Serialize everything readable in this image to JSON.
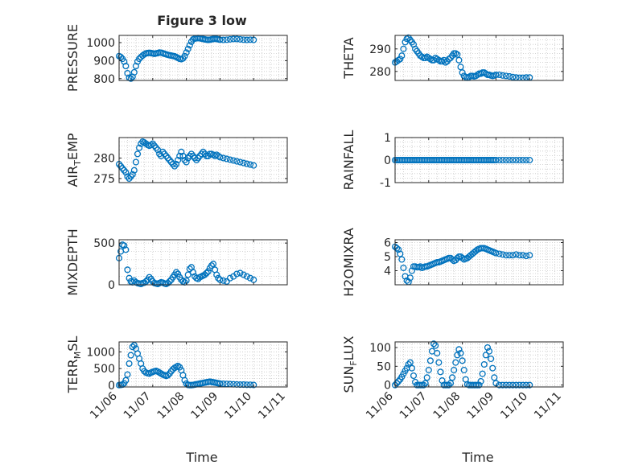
{
  "figure": {
    "title": "Figure 3 low",
    "xlabel": "Time",
    "x_tick_labels": [
      "11/06",
      "11/07",
      "11/08",
      "11/09",
      "11/10",
      "11/11"
    ],
    "marker_color": "#0072bd"
  },
  "chart_data": [
    {
      "type": "scatter",
      "ylabel": "PRESSURE",
      "ylim": [
        790,
        1040
      ],
      "yticks": [
        800,
        900,
        1000
      ],
      "x": [
        0.0,
        0.05,
        0.1,
        0.15,
        0.2,
        0.25,
        0.3,
        0.35,
        0.4,
        0.45,
        0.5,
        0.55,
        0.6,
        0.65,
        0.7,
        0.75,
        0.8,
        0.85,
        0.9,
        0.95,
        1.0,
        1.05,
        1.1,
        1.15,
        1.2,
        1.25,
        1.3,
        1.35,
        1.4,
        1.45,
        1.5,
        1.55,
        1.6,
        1.65,
        1.7,
        1.75,
        1.8,
        1.85,
        1.9,
        1.95,
        2.0,
        2.05,
        2.1,
        2.15,
        2.2,
        2.25,
        2.3,
        2.35,
        2.4,
        2.45,
        2.5,
        2.55,
        2.6,
        2.65,
        2.7,
        2.75,
        2.8,
        2.85,
        2.9,
        2.95,
        3.0,
        3.1,
        3.2,
        3.3,
        3.4,
        3.5,
        3.6,
        3.7,
        3.8,
        3.9,
        4.0
      ],
      "y": [
        925,
        920,
        910,
        895,
        870,
        830,
        805,
        800,
        810,
        835,
        870,
        895,
        910,
        920,
        928,
        935,
        940,
        942,
        943,
        942,
        940,
        938,
        940,
        942,
        945,
        944,
        941,
        938,
        935,
        932,
        930,
        928,
        926,
        924,
        920,
        915,
        910,
        908,
        912,
        925,
        945,
        965,
        985,
        1005,
        1018,
        1022,
        1024,
        1025,
        1024,
        1022,
        1020,
        1018,
        1016,
        1015,
        1016,
        1018,
        1020,
        1021,
        1020,
        1018,
        1016,
        1015,
        1016,
        1018,
        1020,
        1020,
        1018,
        1016,
        1015,
        1016,
        1015
      ]
    },
    {
      "type": "scatter",
      "ylabel": "THETA",
      "ylim": [
        276,
        296
      ],
      "yticks": [
        280,
        290
      ],
      "x": [
        0.0,
        0.05,
        0.1,
        0.15,
        0.2,
        0.25,
        0.3,
        0.35,
        0.4,
        0.45,
        0.5,
        0.55,
        0.6,
        0.65,
        0.7,
        0.75,
        0.8,
        0.85,
        0.9,
        0.95,
        1.0,
        1.05,
        1.1,
        1.15,
        1.2,
        1.25,
        1.3,
        1.35,
        1.4,
        1.45,
        1.5,
        1.55,
        1.6,
        1.65,
        1.7,
        1.75,
        1.8,
        1.85,
        1.9,
        1.95,
        2.0,
        2.05,
        2.1,
        2.15,
        2.2,
        2.25,
        2.3,
        2.35,
        2.4,
        2.45,
        2.5,
        2.55,
        2.6,
        2.65,
        2.7,
        2.75,
        2.8,
        2.85,
        2.9,
        2.95,
        3.0,
        3.1,
        3.2,
        3.3,
        3.4,
        3.5,
        3.6,
        3.7,
        3.8,
        3.9,
        4.0
      ],
      "y": [
        284,
        284.5,
        285,
        285.5,
        287,
        290,
        293,
        294.5,
        295,
        294,
        293,
        292,
        290,
        289,
        288,
        287,
        286.5,
        286,
        286,
        286.5,
        286,
        285.5,
        285,
        285,
        286,
        285.5,
        285,
        284.5,
        284.5,
        285,
        284,
        284.5,
        285.5,
        286,
        287,
        288,
        288,
        287.5,
        285,
        282,
        279.5,
        278,
        277.5,
        277.2,
        277.5,
        278,
        278,
        277.8,
        278,
        278.5,
        279,
        279,
        279.5,
        279.5,
        279,
        278.5,
        278.5,
        278.2,
        278,
        278.2,
        278.5,
        278.5,
        278.2,
        278,
        277.8,
        277.5,
        277.3,
        277.2,
        277.2,
        277.3,
        277.3
      ]
    },
    {
      "type": "scatter",
      "ylabel": "AIR_TEMP",
      "ylim": [
        274,
        285
      ],
      "yticks": [
        275,
        280
      ],
      "x": [
        0.0,
        0.05,
        0.1,
        0.15,
        0.2,
        0.25,
        0.3,
        0.35,
        0.4,
        0.45,
        0.5,
        0.55,
        0.6,
        0.65,
        0.7,
        0.75,
        0.8,
        0.85,
        0.9,
        0.95,
        1.0,
        1.05,
        1.1,
        1.15,
        1.2,
        1.25,
        1.3,
        1.35,
        1.4,
        1.45,
        1.5,
        1.55,
        1.6,
        1.65,
        1.7,
        1.75,
        1.8,
        1.85,
        1.9,
        1.95,
        2.0,
        2.05,
        2.1,
        2.15,
        2.2,
        2.25,
        2.3,
        2.35,
        2.4,
        2.45,
        2.5,
        2.55,
        2.6,
        2.65,
        2.7,
        2.75,
        2.8,
        2.85,
        2.9,
        2.95,
        3.0,
        3.1,
        3.2,
        3.3,
        3.4,
        3.5,
        3.6,
        3.7,
        3.8,
        3.9,
        4.0
      ],
      "y": [
        278.5,
        278,
        277.5,
        277,
        276.5,
        275.5,
        275,
        275.5,
        276,
        277,
        279,
        281,
        282.5,
        283.5,
        284,
        283.8,
        283.5,
        283.2,
        283,
        283.2,
        283.5,
        283,
        282.5,
        282,
        281,
        280.5,
        281.5,
        281,
        280.5,
        280,
        279.5,
        279,
        278.5,
        278,
        278.5,
        279.5,
        280.5,
        281.5,
        280.5,
        279.5,
        279,
        280,
        280.5,
        281,
        280.5,
        280,
        279.5,
        280,
        280.5,
        281,
        281.5,
        281,
        280.5,
        280.5,
        281,
        281,
        280.8,
        280.5,
        280.8,
        280.5,
        280.2,
        280,
        279.8,
        279.6,
        279.4,
        279.2,
        279,
        278.8,
        278.6,
        278.4,
        278.2
      ]
    },
    {
      "type": "scatter",
      "ylabel": "RAINFALL",
      "ylim": [
        -1,
        1
      ],
      "yticks": [
        -1,
        0,
        1
      ],
      "x": [
        0.0,
        0.05,
        0.1,
        0.15,
        0.2,
        0.25,
        0.3,
        0.35,
        0.4,
        0.45,
        0.5,
        0.55,
        0.6,
        0.65,
        0.7,
        0.75,
        0.8,
        0.85,
        0.9,
        0.95,
        1.0,
        1.05,
        1.1,
        1.15,
        1.2,
        1.25,
        1.3,
        1.35,
        1.4,
        1.45,
        1.5,
        1.55,
        1.6,
        1.65,
        1.7,
        1.75,
        1.8,
        1.85,
        1.9,
        1.95,
        2.0,
        2.05,
        2.1,
        2.15,
        2.2,
        2.25,
        2.3,
        2.35,
        2.4,
        2.45,
        2.5,
        2.55,
        2.6,
        2.65,
        2.7,
        2.75,
        2.8,
        2.85,
        2.9,
        2.95,
        3.0,
        3.1,
        3.2,
        3.3,
        3.4,
        3.5,
        3.6,
        3.7,
        3.8,
        3.9,
        4.0
      ],
      "y": [
        0,
        0,
        0,
        0,
        0,
        0,
        0,
        0,
        0,
        0,
        0,
        0,
        0,
        0,
        0,
        0,
        0,
        0,
        0,
        0,
        0,
        0,
        0,
        0,
        0,
        0,
        0,
        0,
        0,
        0,
        0,
        0,
        0,
        0,
        0,
        0,
        0,
        0,
        0,
        0,
        0,
        0,
        0,
        0,
        0,
        0,
        0,
        0,
        0,
        0,
        0,
        0,
        0,
        0,
        0,
        0,
        0,
        0,
        0,
        0,
        0,
        0,
        0,
        0,
        0,
        0,
        0,
        0,
        0,
        0,
        0
      ]
    },
    {
      "type": "scatter",
      "ylabel": "MIXDEPTH",
      "ylim": [
        0,
        540
      ],
      "yticks": [
        0,
        500
      ],
      "x": [
        0.0,
        0.05,
        0.1,
        0.15,
        0.2,
        0.25,
        0.3,
        0.35,
        0.4,
        0.45,
        0.5,
        0.55,
        0.6,
        0.65,
        0.7,
        0.75,
        0.8,
        0.85,
        0.9,
        0.95,
        1.0,
        1.05,
        1.1,
        1.15,
        1.2,
        1.25,
        1.3,
        1.35,
        1.4,
        1.45,
        1.5,
        1.55,
        1.6,
        1.65,
        1.7,
        1.75,
        1.8,
        1.85,
        1.9,
        1.95,
        2.0,
        2.05,
        2.1,
        2.15,
        2.2,
        2.25,
        2.3,
        2.35,
        2.4,
        2.45,
        2.5,
        2.55,
        2.6,
        2.65,
        2.7,
        2.75,
        2.8,
        2.85,
        2.9,
        2.95,
        3.0,
        3.1,
        3.2,
        3.3,
        3.4,
        3.5,
        3.6,
        3.7,
        3.8,
        3.9,
        4.0
      ],
      "y": [
        320,
        400,
        480,
        470,
        420,
        180,
        80,
        40,
        30,
        50,
        30,
        20,
        15,
        10,
        20,
        25,
        40,
        60,
        90,
        70,
        40,
        20,
        15,
        10,
        20,
        30,
        25,
        15,
        10,
        20,
        40,
        60,
        90,
        120,
        150,
        130,
        90,
        60,
        40,
        30,
        50,
        120,
        190,
        210,
        150,
        100,
        80,
        70,
        90,
        100,
        110,
        120,
        140,
        160,
        200,
        230,
        250,
        180,
        120,
        80,
        60,
        50,
        40,
        80,
        100,
        130,
        140,
        120,
        100,
        80,
        60
      ]
    },
    {
      "type": "scatter",
      "ylabel": "H2OMIXRA",
      "ylim": [
        3,
        6.2
      ],
      "yticks": [
        4,
        5,
        6
      ],
      "x": [
        0.0,
        0.05,
        0.1,
        0.15,
        0.2,
        0.25,
        0.3,
        0.35,
        0.4,
        0.45,
        0.5,
        0.55,
        0.6,
        0.65,
        0.7,
        0.75,
        0.8,
        0.85,
        0.9,
        0.95,
        1.0,
        1.05,
        1.1,
        1.15,
        1.2,
        1.25,
        1.3,
        1.35,
        1.4,
        1.45,
        1.5,
        1.55,
        1.6,
        1.65,
        1.7,
        1.75,
        1.8,
        1.85,
        1.9,
        1.95,
        2.0,
        2.05,
        2.1,
        2.15,
        2.2,
        2.25,
        2.3,
        2.35,
        2.4,
        2.45,
        2.5,
        2.55,
        2.6,
        2.65,
        2.7,
        2.75,
        2.8,
        2.85,
        2.9,
        2.95,
        3.0,
        3.1,
        3.2,
        3.3,
        3.4,
        3.5,
        3.6,
        3.7,
        3.8,
        3.9,
        4.0
      ],
      "y": [
        5.7,
        5.6,
        5.5,
        5.2,
        4.8,
        4.2,
        3.6,
        3.3,
        3.2,
        3.5,
        4.0,
        4.3,
        4.3,
        4.25,
        4.25,
        4.3,
        4.2,
        4.25,
        4.3,
        4.3,
        4.35,
        4.4,
        4.45,
        4.5,
        4.55,
        4.6,
        4.6,
        4.65,
        4.7,
        4.75,
        4.8,
        4.85,
        4.9,
        4.9,
        4.8,
        4.7,
        4.75,
        4.9,
        5.0,
        5.0,
        4.9,
        4.8,
        4.85,
        4.9,
        5.0,
        5.1,
        5.2,
        5.3,
        5.4,
        5.5,
        5.55,
        5.6,
        5.6,
        5.6,
        5.55,
        5.5,
        5.45,
        5.4,
        5.35,
        5.3,
        5.25,
        5.2,
        5.15,
        5.1,
        5.1,
        5.1,
        5.15,
        5.1,
        5.1,
        5.05,
        5.1
      ]
    },
    {
      "type": "scatter",
      "ylabel": "TERR_MSL",
      "ylim": [
        -50,
        1300
      ],
      "yticks": [
        0,
        500,
        1000
      ],
      "x": [
        0.0,
        0.05,
        0.1,
        0.15,
        0.2,
        0.25,
        0.3,
        0.35,
        0.4,
        0.45,
        0.5,
        0.55,
        0.6,
        0.65,
        0.7,
        0.75,
        0.8,
        0.85,
        0.9,
        0.95,
        1.0,
        1.05,
        1.1,
        1.15,
        1.2,
        1.25,
        1.3,
        1.35,
        1.4,
        1.45,
        1.5,
        1.55,
        1.6,
        1.65,
        1.7,
        1.75,
        1.8,
        1.85,
        1.9,
        1.95,
        2.0,
        2.05,
        2.1,
        2.15,
        2.2,
        2.25,
        2.3,
        2.35,
        2.4,
        2.45,
        2.5,
        2.55,
        2.6,
        2.65,
        2.7,
        2.75,
        2.8,
        2.85,
        2.9,
        2.95,
        3.0,
        3.1,
        3.2,
        3.3,
        3.4,
        3.5,
        3.6,
        3.7,
        3.8,
        3.9,
        4.0
      ],
      "y": [
        5,
        10,
        20,
        60,
        150,
        320,
        650,
        900,
        1150,
        1200,
        1100,
        950,
        800,
        650,
        500,
        420,
        380,
        360,
        350,
        380,
        400,
        420,
        430,
        410,
        380,
        350,
        320,
        300,
        280,
        300,
        350,
        420,
        480,
        520,
        550,
        580,
        540,
        450,
        300,
        150,
        50,
        10,
        5,
        5,
        10,
        20,
        30,
        40,
        50,
        60,
        70,
        80,
        90,
        100,
        110,
        100,
        90,
        80,
        70,
        60,
        50,
        45,
        40,
        35,
        30,
        25,
        20,
        20,
        15,
        15,
        10
      ]
    },
    {
      "type": "scatter",
      "ylabel": "SUN_FLUX",
      "ylim": [
        -5,
        115
      ],
      "yticks": [
        0,
        50,
        100
      ],
      "x": [
        0.0,
        0.05,
        0.1,
        0.15,
        0.2,
        0.25,
        0.3,
        0.35,
        0.4,
        0.45,
        0.5,
        0.55,
        0.6,
        0.65,
        0.7,
        0.75,
        0.8,
        0.85,
        0.9,
        0.95,
        1.0,
        1.05,
        1.1,
        1.15,
        1.2,
        1.25,
        1.3,
        1.35,
        1.4,
        1.45,
        1.5,
        1.55,
        1.6,
        1.65,
        1.7,
        1.75,
        1.8,
        1.85,
        1.9,
        1.95,
        2.0,
        2.05,
        2.1,
        2.15,
        2.2,
        2.25,
        2.3,
        2.35,
        2.4,
        2.45,
        2.5,
        2.55,
        2.6,
        2.65,
        2.7,
        2.75,
        2.8,
        2.85,
        2.9,
        2.95,
        3.0,
        3.1,
        3.2,
        3.3,
        3.4,
        3.5,
        3.6,
        3.7,
        3.8,
        3.9,
        4.0
      ],
      "y": [
        0,
        5,
        10,
        15,
        22,
        30,
        38,
        45,
        55,
        60,
        45,
        25,
        8,
        0,
        0,
        0,
        0,
        0,
        5,
        20,
        40,
        65,
        90,
        110,
        105,
        85,
        60,
        35,
        12,
        0,
        0,
        0,
        0,
        5,
        20,
        40,
        60,
        80,
        95,
        85,
        65,
        40,
        15,
        2,
        0,
        0,
        0,
        0,
        0,
        0,
        0,
        10,
        30,
        55,
        80,
        100,
        90,
        70,
        45,
        20,
        5,
        0,
        0,
        0,
        0,
        0,
        0,
        0,
        0,
        0,
        0
      ]
    }
  ]
}
